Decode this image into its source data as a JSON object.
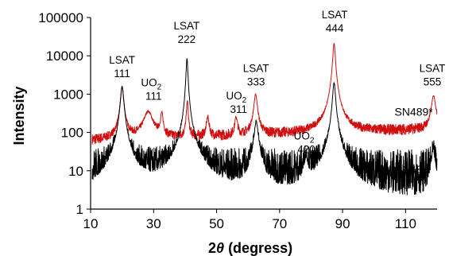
{
  "chart_data": {
    "type": "line",
    "xlabel_parts": [
      "2",
      "θ",
      " (degress)"
    ],
    "ylabel": "Intensity",
    "xlim": [
      10,
      120
    ],
    "ylim": [
      1,
      100000
    ],
    "yscale": "log",
    "xticks": [
      "10",
      "30",
      "50",
      "70",
      "90",
      "110"
    ],
    "xtick_values": [
      10,
      30,
      50,
      70,
      90,
      110
    ],
    "yticks": [
      "1",
      "10",
      "100",
      "1000",
      "10000",
      "100000"
    ],
    "ytick_values": [
      1,
      10,
      100,
      1000,
      10000,
      100000
    ],
    "grid": false,
    "series": [
      {
        "name": "SN489*",
        "color": "#d01010",
        "noise_floor": {
          "x_start": 10.5,
          "x_end": 120,
          "y_at_start": 60,
          "y_at_end": 120,
          "jitter": 0.35
        },
        "peaks": [
          {
            "x": 20.0,
            "y": 1500,
            "width": 0.45
          },
          {
            "x": 28.3,
            "y": 280,
            "width": 1.4
          },
          {
            "x": 32.6,
            "y": 240,
            "width": 0.4
          },
          {
            "x": 40.7,
            "y": 600,
            "width": 0.25
          },
          {
            "x": 47.2,
            "y": 180,
            "width": 0.4
          },
          {
            "x": 56.2,
            "y": 170,
            "width": 0.4
          },
          {
            "x": 62.4,
            "y": 900,
            "width": 0.5
          },
          {
            "x": 87.3,
            "y": 21000,
            "width": 0.35
          },
          {
            "x": 118.9,
            "y": 800,
            "width": 0.6
          }
        ]
      },
      {
        "name": "SN489",
        "color": "#000000",
        "noise_floor": {
          "x_start": 10.5,
          "x_end": 120,
          "y_at_start": 7,
          "y_at_end": 7,
          "jitter": 1.6
        },
        "peaks": [
          {
            "x": 20.0,
            "y": 1600,
            "width": 0.45
          },
          {
            "x": 40.6,
            "y": 8500,
            "width": 0.25
          },
          {
            "x": 62.6,
            "y": 180,
            "width": 0.6
          },
          {
            "x": 78.4,
            "y": 16,
            "width": 0.6
          },
          {
            "x": 87.3,
            "y": 2000,
            "width": 0.4
          },
          {
            "x": 118.8,
            "y": 28,
            "width": 0.6
          }
        ]
      }
    ],
    "series_labels": [
      {
        "text": "SN489*",
        "x": 106.5,
        "y": 350
      },
      {
        "text": "SN489",
        "x": 106.5,
        "y": 11
      }
    ],
    "annotations": [
      {
        "lines": [
          "LSAT",
          "111"
        ],
        "x": 20,
        "y": 4300
      },
      {
        "lines": [
          "UO",
          "2",
          "111"
        ],
        "sub": true,
        "x": 30,
        "y": 1100
      },
      {
        "lines": [
          "LSAT",
          "222"
        ],
        "x": 40.5,
        "y": 33000
      },
      {
        "lines": [
          "UO",
          "2",
          "311"
        ],
        "sub": true,
        "x": 57,
        "y": 500
      },
      {
        "lines": [
          "LSAT",
          "333"
        ],
        "x": 62.5,
        "y": 2600
      },
      {
        "lines": [
          "UO",
          "2",
          "420"
        ],
        "sub": true,
        "x": 78.5,
        "y": 45
      },
      {
        "lines": [
          "LSAT",
          "444"
        ],
        "x": 87.5,
        "y": 65000
      },
      {
        "lines": [
          "LSAT",
          "555"
        ],
        "x": 118.5,
        "y": 2600
      }
    ]
  }
}
